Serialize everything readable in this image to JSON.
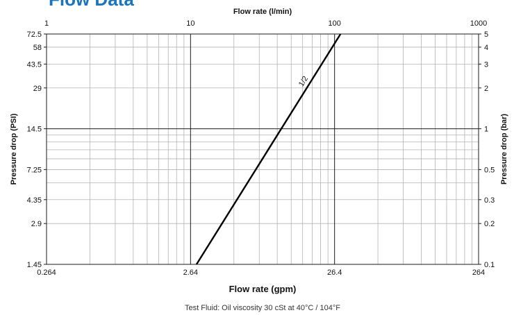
{
  "page": {
    "heading": "Flow Data",
    "footnote": "Test Fluid: Oil viscosity 30 cSt at 40°C / 104°F"
  },
  "colors": {
    "heading": "#1b75bc",
    "grid_minor": "#b3b3b3",
    "grid_major": "#1a1a1a",
    "curve": "#000000"
  },
  "chart_data": {
    "type": "line",
    "x_scale": "log",
    "y_scale": "log",
    "grid": true,
    "top_axis": {
      "title": "Flow rate (l/min)",
      "ticks": [
        {
          "value": 1,
          "label": "1"
        },
        {
          "value": 10,
          "label": "10"
        },
        {
          "value": 100,
          "label": "100"
        },
        {
          "value": 1000,
          "label": "1000"
        }
      ],
      "range": [
        1,
        1000
      ]
    },
    "bottom_axis": {
      "title": "Flow rate (gpm)",
      "ticks": [
        {
          "value": 0.264,
          "label": "0.264"
        },
        {
          "value": 2.64,
          "label": "2.64"
        },
        {
          "value": 26.4,
          "label": "26.4"
        },
        {
          "value": 264,
          "label": "264"
        }
      ],
      "range": [
        0.264,
        264
      ]
    },
    "left_axis": {
      "title": "Pressure drop (PSI)",
      "ticks": [
        {
          "value": 1.45,
          "label": "1.45"
        },
        {
          "value": 2.9,
          "label": "2.9"
        },
        {
          "value": 4.35,
          "label": "4.35"
        },
        {
          "value": 7.25,
          "label": "7.25"
        },
        {
          "value": 14.5,
          "label": "14.5"
        },
        {
          "value": 29,
          "label": "29"
        },
        {
          "value": 43.5,
          "label": "43.5"
        },
        {
          "value": 58,
          "label": "58"
        },
        {
          "value": 72.5,
          "label": "72.5"
        }
      ],
      "range": [
        1.45,
        72.5
      ]
    },
    "right_axis": {
      "title": "Pressure drop (bar)",
      "ticks": [
        {
          "value": 0.1,
          "label": "0.1"
        },
        {
          "value": 0.2,
          "label": "0.2"
        },
        {
          "value": 0.3,
          "label": "0.3"
        },
        {
          "value": 0.5,
          "label": "0.5"
        },
        {
          "value": 1,
          "label": "1"
        },
        {
          "value": 2,
          "label": "2"
        },
        {
          "value": 3,
          "label": "3"
        },
        {
          "value": 4,
          "label": "4"
        },
        {
          "value": 5,
          "label": "5"
        }
      ],
      "range": [
        0.1,
        5
      ]
    },
    "series": [
      {
        "name": "1/2",
        "x_unit": "l/min",
        "y_unit": "bar",
        "x": [
          11,
          110
        ],
        "y": [
          0.1,
          5
        ]
      }
    ]
  }
}
